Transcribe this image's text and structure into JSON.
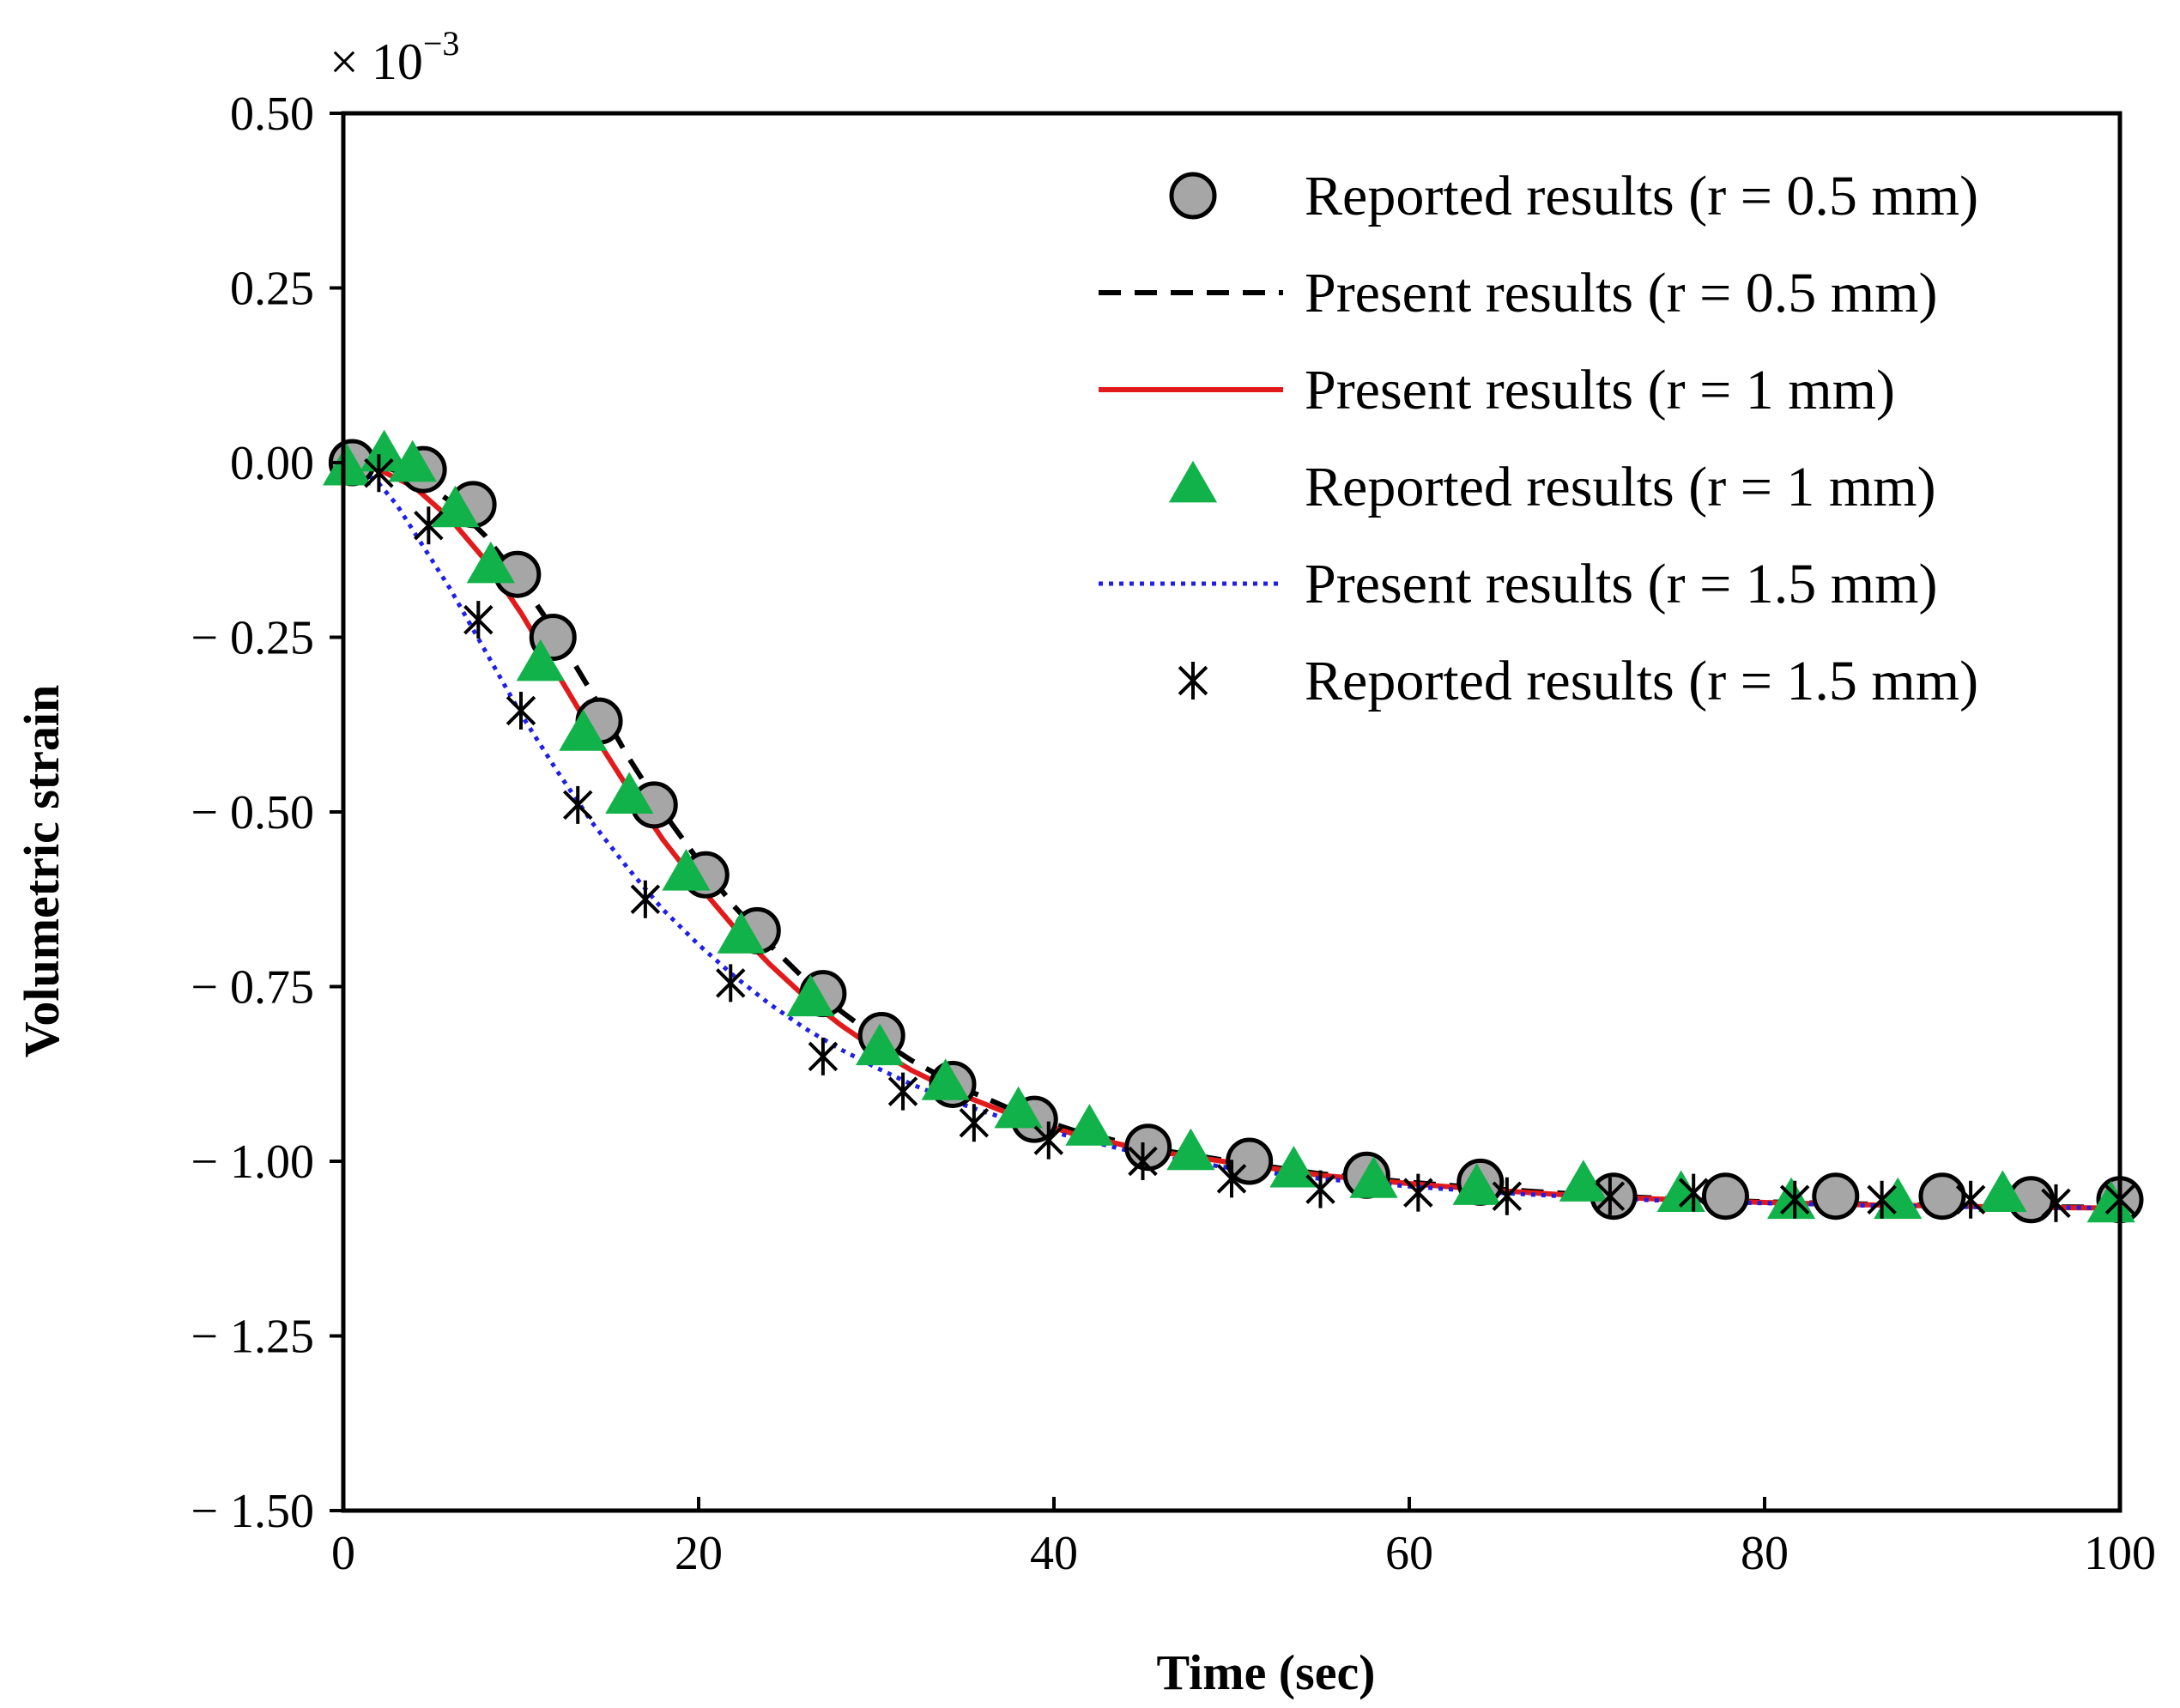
{
  "chart_data": {
    "type": "line",
    "title": "",
    "xlabel": "Time (sec)",
    "ylabel": "Volumetric strain",
    "scale_label": "× 10",
    "scale_exponent": "−3",
    "xlim": [
      0,
      100
    ],
    "ylim": [
      -1.5,
      0.5
    ],
    "x_ticks": [
      0,
      20,
      40,
      60,
      80,
      100
    ],
    "x_tick_labels": [
      "0",
      "20",
      "40",
      "60",
      "80",
      "100"
    ],
    "y_ticks": [
      0.5,
      0.25,
      0,
      -0.25,
      -0.5,
      -0.75,
      -1.0,
      -1.25,
      -1.5
    ],
    "y_tick_labels": [
      "0.50",
      "0.25",
      "0.00",
      "− 0.25",
      "− 0.50",
      "− 0.75",
      "− 1.00",
      "− 1.25",
      "− 1.50"
    ],
    "legend_position": "top-right",
    "series": [
      {
        "name": "Reported results (r = 0.5 mm)",
        "kind": "marker",
        "marker": "circle",
        "color": "#a6a6a6",
        "edge": "#000000",
        "x": [
          0.5,
          4.5,
          7.3,
          9.8,
          11.8,
          14.4,
          17.5,
          20.4,
          23.3,
          27.0,
          30.3,
          34.3,
          38.9,
          45.3,
          51.0,
          57.6,
          64.0,
          71.5,
          77.8,
          84.0,
          90.0,
          95.0,
          100.0
        ],
        "y": [
          0.0,
          -0.01,
          -0.06,
          -0.16,
          -0.25,
          -0.37,
          -0.49,
          -0.59,
          -0.67,
          -0.76,
          -0.82,
          -0.89,
          -0.94,
          -0.98,
          -1.0,
          -1.02,
          -1.03,
          -1.05,
          -1.05,
          -1.05,
          -1.05,
          -1.055,
          -1.055
        ]
      },
      {
        "name": "Present results (r = 0.5 mm)",
        "kind": "line",
        "style": "dashed",
        "color": "#000000",
        "x": [
          0,
          2,
          4,
          6,
          8,
          10,
          12,
          14,
          16,
          18,
          20,
          22,
          24,
          26,
          28,
          30,
          32,
          35,
          38,
          41,
          45,
          50,
          55,
          60,
          65,
          70,
          75,
          80,
          85,
          90,
          95,
          100
        ],
        "y": [
          0.0,
          -0.004,
          -0.02,
          -0.055,
          -0.105,
          -0.17,
          -0.245,
          -0.33,
          -0.42,
          -0.5,
          -0.57,
          -0.635,
          -0.69,
          -0.74,
          -0.785,
          -0.823,
          -0.856,
          -0.897,
          -0.93,
          -0.955,
          -0.98,
          -1.0,
          -1.018,
          -1.03,
          -1.04,
          -1.048,
          -1.054,
          -1.058,
          -1.061,
          -1.063,
          -1.065,
          -1.066
        ]
      },
      {
        "name": "Present results (r = 1 mm)",
        "kind": "line",
        "style": "solid",
        "color": "#e31a1c",
        "x": [
          0,
          2,
          4,
          6,
          8,
          10,
          12,
          14,
          16,
          18,
          20,
          22,
          24,
          26,
          28,
          30,
          32,
          35,
          38,
          41,
          45,
          50,
          55,
          60,
          65,
          70,
          75,
          80,
          85,
          90,
          95,
          100
        ],
        "y": [
          0.0,
          -0.01,
          -0.035,
          -0.08,
          -0.14,
          -0.215,
          -0.3,
          -0.385,
          -0.465,
          -0.54,
          -0.605,
          -0.665,
          -0.718,
          -0.765,
          -0.805,
          -0.84,
          -0.87,
          -0.907,
          -0.937,
          -0.96,
          -0.983,
          -1.002,
          -1.02,
          -1.032,
          -1.042,
          -1.05,
          -1.055,
          -1.059,
          -1.062,
          -1.064,
          -1.066,
          -1.067
        ]
      },
      {
        "name": "Reported results (r = 1 mm)",
        "kind": "marker",
        "marker": "triangle",
        "color": "#12b24a",
        "x": [
          0.2,
          2.3,
          3.9,
          6.3,
          8.3,
          11.1,
          13.5,
          16.1,
          19.3,
          22.4,
          26.3,
          30.2,
          33.9,
          38.0,
          42.0,
          47.7,
          53.5,
          58.0,
          63.8,
          69.8,
          75.3,
          81.5,
          87.5,
          93.4,
          99.5
        ],
        "y": [
          -0.01,
          0.01,
          -0.005,
          -0.07,
          -0.15,
          -0.29,
          -0.39,
          -0.48,
          -0.59,
          -0.68,
          -0.77,
          -0.84,
          -0.89,
          -0.93,
          -0.955,
          -0.99,
          -1.015,
          -1.03,
          -1.04,
          -1.035,
          -1.05,
          -1.06,
          -1.06,
          -1.05,
          -1.065
        ]
      },
      {
        "name": "Present results (r = 1.5 mm)",
        "kind": "line",
        "style": "dotted",
        "color": "#1f1fe8",
        "x": [
          0,
          1,
          2,
          3,
          4,
          5,
          6,
          8,
          10,
          12,
          14,
          16,
          18,
          20,
          22,
          24,
          26,
          28,
          30,
          32,
          35,
          38,
          41,
          45,
          50,
          55,
          60,
          65,
          70,
          75,
          80,
          85,
          90,
          95,
          100
        ],
        "y": [
          0.0,
          -0.01,
          -0.03,
          -0.06,
          -0.1,
          -0.14,
          -0.18,
          -0.27,
          -0.36,
          -0.44,
          -0.515,
          -0.58,
          -0.64,
          -0.69,
          -0.735,
          -0.775,
          -0.81,
          -0.84,
          -0.866,
          -0.89,
          -0.92,
          -0.945,
          -0.965,
          -0.99,
          -1.01,
          -1.025,
          -1.036,
          -1.045,
          -1.052,
          -1.057,
          -1.06,
          -1.063,
          -1.065,
          -1.066,
          -1.067
        ]
      },
      {
        "name": "Reported results (r = 1.5 mm)",
        "kind": "marker",
        "marker": "asterisk",
        "color": "#000000",
        "x": [
          2.0,
          4.8,
          7.6,
          10.0,
          13.2,
          17.0,
          21.8,
          27.0,
          31.5,
          35.5,
          39.7,
          45.0,
          50.0,
          55.0,
          60.5,
          65.5,
          71.3,
          76.0,
          81.7,
          86.6,
          91.6,
          96.4,
          100.0
        ],
        "y": [
          -0.015,
          -0.09,
          -0.225,
          -0.355,
          -0.49,
          -0.625,
          -0.745,
          -0.85,
          -0.9,
          -0.945,
          -0.97,
          -1.0,
          -1.025,
          -1.04,
          -1.045,
          -1.05,
          -1.05,
          -1.045,
          -1.055,
          -1.055,
          -1.055,
          -1.06,
          -1.055
        ]
      }
    ]
  }
}
